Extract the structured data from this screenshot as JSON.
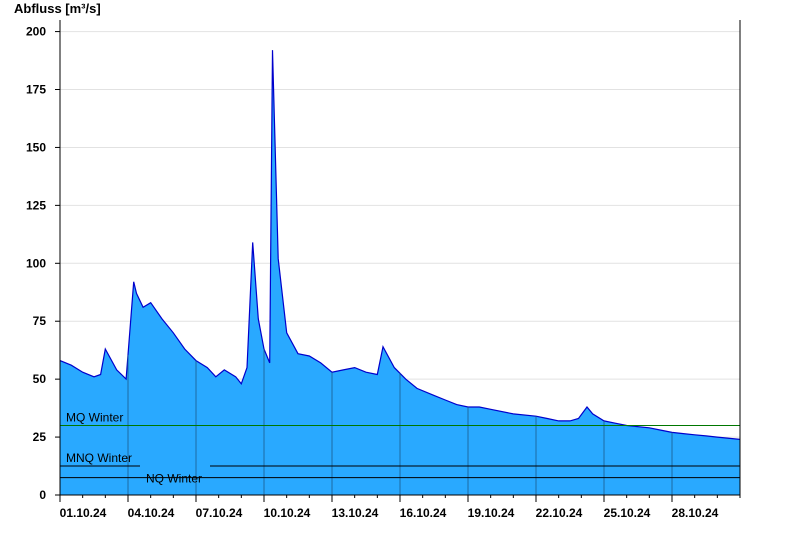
{
  "chart_data": {
    "type": "area",
    "title": "",
    "ylabel": "Abfluss [m³/s]",
    "xlabel": "",
    "ylim": [
      0,
      205
    ],
    "xlim": [
      "2024-10-01T00:00",
      "2024-10-31T00:00"
    ],
    "y_ticks": [
      0,
      25,
      50,
      75,
      100,
      125,
      150,
      175,
      200
    ],
    "x_ticks": [
      "01.10.24",
      "04.10.24",
      "07.10.24",
      "10.10.24",
      "13.10.24",
      "16.10.24",
      "19.10.24",
      "22.10.24",
      "25.10.24",
      "28.10.24"
    ],
    "grid": "horizontal",
    "colors": {
      "fill": "#29a9ff",
      "line": "#0000cc",
      "mq_line": "#007700",
      "ref_line": "#000000"
    },
    "reference_lines": [
      {
        "label": "MQ Winter",
        "value": 30
      },
      {
        "label": "MNQ Winter",
        "value": 12.5
      },
      {
        "label": "NQ Winter",
        "value": 7.5
      }
    ],
    "series": [
      {
        "x": [
          "2024-10-01T00:00",
          "2024-10-01T12:00",
          "2024-10-02T00:00",
          "2024-10-02T12:00",
          "2024-10-02T19:00",
          "2024-10-03T00:00",
          "2024-10-03T12:00",
          "2024-10-03T22:00",
          "2024-10-04T06:00",
          "2024-10-04T09:00",
          "2024-10-04T16:00",
          "2024-10-05T00:00",
          "2024-10-05T12:00",
          "2024-10-06T00:00",
          "2024-10-06T12:00",
          "2024-10-07T00:00",
          "2024-10-07T12:00",
          "2024-10-07T21:00",
          "2024-10-08T06:00",
          "2024-10-08T18:00",
          "2024-10-09T00:00",
          "2024-10-09T06:00",
          "2024-10-09T12:00",
          "2024-10-09T18:00",
          "2024-10-10T00:00",
          "2024-10-10T06:00",
          "2024-10-10T09:00",
          "2024-10-10T15:00",
          "2024-10-11T00:00",
          "2024-10-11T12:00",
          "2024-10-12T00:00",
          "2024-10-12T12:00",
          "2024-10-13T00:00",
          "2024-10-13T12:00",
          "2024-10-14T00:00",
          "2024-10-14T12:00",
          "2024-10-15T00:00",
          "2024-10-15T06:00",
          "2024-10-15T18:00",
          "2024-10-16T06:00",
          "2024-10-16T18:00",
          "2024-10-17T12:00",
          "2024-10-18T00:00",
          "2024-10-18T12:00",
          "2024-10-19T00:00",
          "2024-10-19T12:00",
          "2024-10-20T00:00",
          "2024-10-21T00:00",
          "2024-10-22T00:00",
          "2024-10-22T12:00",
          "2024-10-23T00:00",
          "2024-10-23T12:00",
          "2024-10-23T21:00",
          "2024-10-24T06:00",
          "2024-10-24T12:00",
          "2024-10-25T00:00",
          "2024-10-25T12:00",
          "2024-10-26T00:00",
          "2024-10-27T00:00",
          "2024-10-27T12:00",
          "2024-10-28T00:00",
          "2024-10-28T12:00",
          "2024-10-29T00:00",
          "2024-10-29T12:00",
          "2024-10-30T00:00",
          "2024-10-31T00:00"
        ],
        "y": [
          58,
          56,
          53,
          51,
          52,
          63,
          54,
          50,
          92,
          87,
          81,
          83,
          76,
          70,
          63,
          58,
          55,
          51,
          54,
          51,
          48,
          55,
          109,
          76,
          63,
          57,
          192,
          102,
          70,
          61,
          60,
          57,
          53,
          54,
          55,
          53,
          52,
          64,
          55,
          50,
          46,
          43,
          41,
          39,
          38,
          38,
          37,
          35,
          34,
          33,
          32,
          32,
          33,
          38,
          35,
          32,
          31,
          30,
          29,
          28,
          27,
          26.5,
          26,
          25.5,
          25,
          24
        ]
      }
    ]
  }
}
